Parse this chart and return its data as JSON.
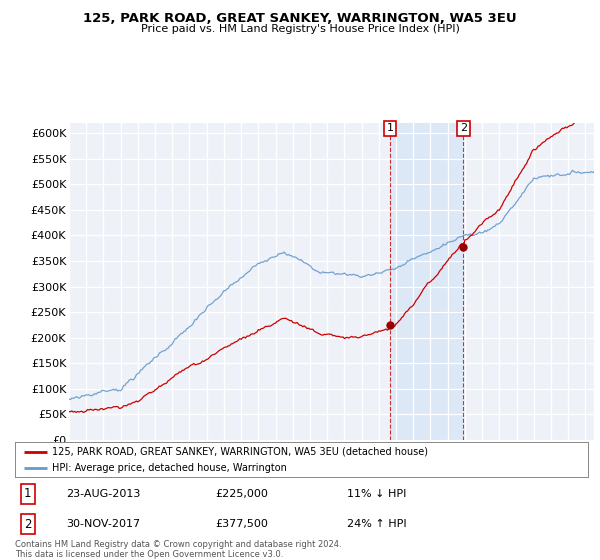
{
  "title": "125, PARK ROAD, GREAT SANKEY, WARRINGTON, WA5 3EU",
  "subtitle": "Price paid vs. HM Land Registry's House Price Index (HPI)",
  "background_color": "#ffffff",
  "plot_bg_color": "#eef2f8",
  "highlight_color": "#dce8f5",
  "ylim": [
    0,
    620000
  ],
  "yticks": [
    0,
    50000,
    100000,
    150000,
    200000,
    250000,
    300000,
    350000,
    400000,
    450000,
    500000,
    550000,
    600000
  ],
  "ytick_labels": [
    "£0",
    "£50K",
    "£100K",
    "£150K",
    "£200K",
    "£250K",
    "£300K",
    "£350K",
    "£400K",
    "£450K",
    "£500K",
    "£550K",
    "£600K"
  ],
  "xlim_start": 1995.0,
  "xlim_end": 2025.5,
  "sale1_date": 2013.647,
  "sale1_price": 225000,
  "sale1_label": "1",
  "sale2_date": 2017.917,
  "sale2_price": 377500,
  "sale2_label": "2",
  "legend_line1": "125, PARK ROAD, GREAT SANKEY, WARRINGTON, WA5 3EU (detached house)",
  "legend_line2": "HPI: Average price, detached house, Warrington",
  "annot1_date": "23-AUG-2013",
  "annot1_price": "£225,000",
  "annot1_hpi": "11% ↓ HPI",
  "annot2_date": "30-NOV-2017",
  "annot2_price": "£377,500",
  "annot2_hpi": "24% ↑ HPI",
  "footer": "Contains HM Land Registry data © Crown copyright and database right 2024.\nThis data is licensed under the Open Government Licence v3.0.",
  "red_color": "#cc0000",
  "blue_color": "#6699cc",
  "sale_dot_color": "#990000"
}
